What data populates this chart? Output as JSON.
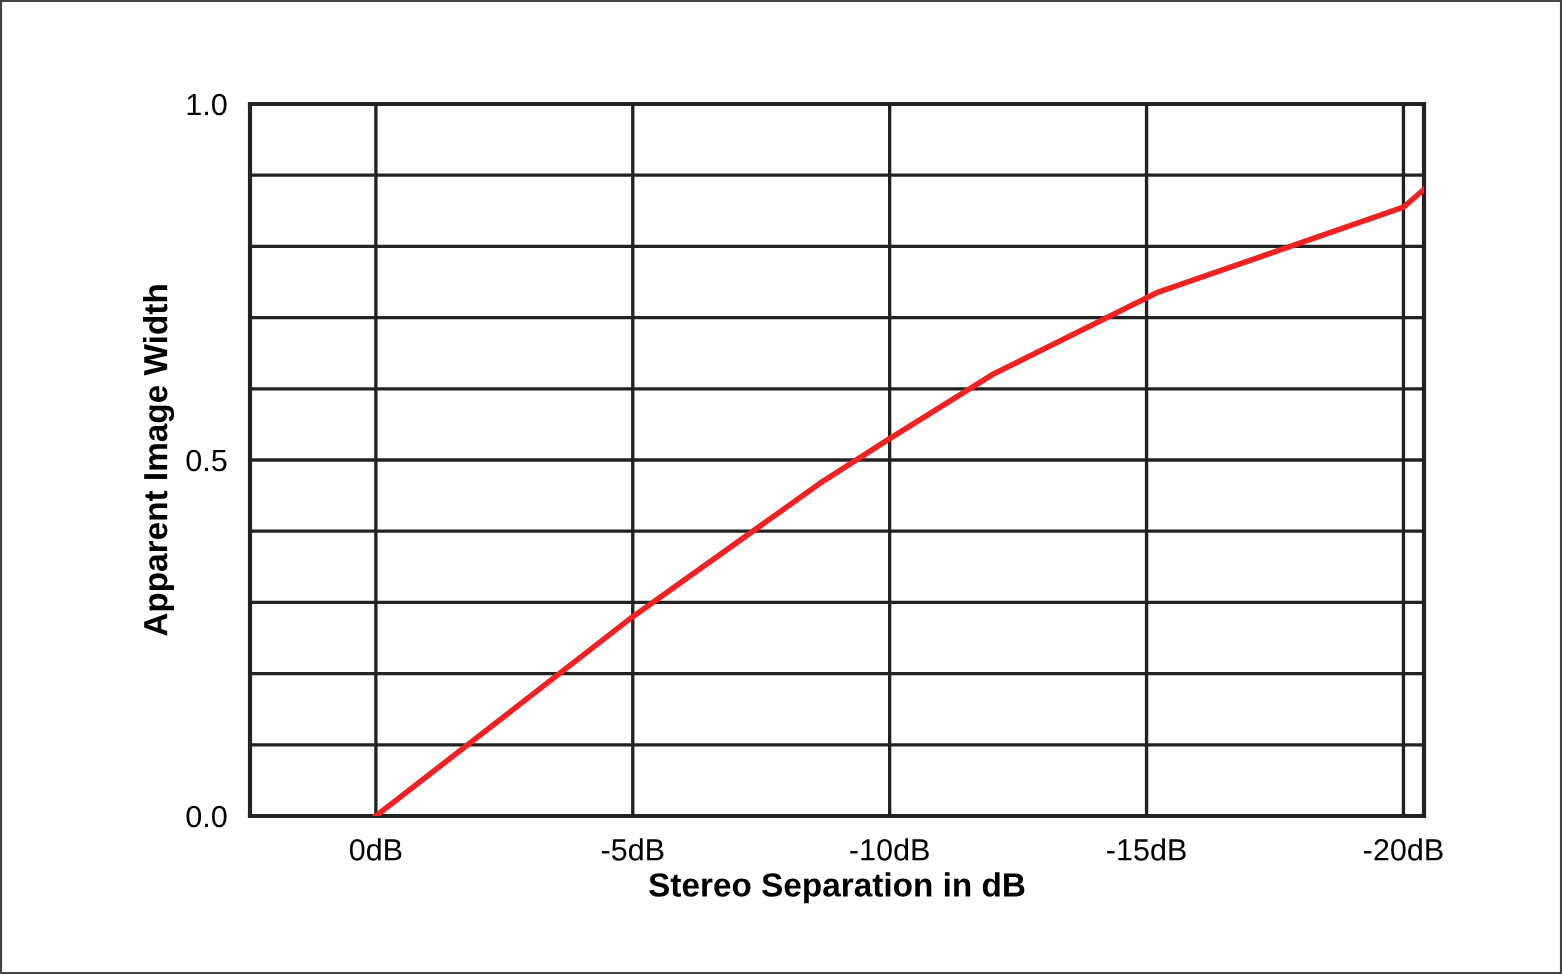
{
  "chart_data": {
    "type": "line",
    "xlabel": "Stereo Separation in dB",
    "ylabel": "Apparent Image Width",
    "x": [
      0,
      -5,
      -8.7,
      -10,
      -12,
      -15.2,
      -20,
      -20.4
    ],
    "series": [
      {
        "color": "#ee2222",
        "values": [
          0.0,
          0.28,
          0.47,
          0.53,
          0.62,
          0.735,
          0.855,
          0.88
        ]
      }
    ],
    "xlim": [
      2.45,
      -20.4
    ],
    "xticks": [
      {
        "value": 0,
        "label": "0dB"
      },
      {
        "value": -5,
        "label": "-5dB"
      },
      {
        "value": -10,
        "label": "-10dB"
      },
      {
        "value": -15,
        "label": "-15dB"
      },
      {
        "value": -20,
        "label": "-20dB"
      }
    ],
    "ylim": [
      0,
      1
    ],
    "yticks": [
      {
        "value": 0,
        "label": "0.0"
      },
      {
        "value": 0.1,
        "label": null
      },
      {
        "value": 0.2,
        "label": null
      },
      {
        "value": 0.3,
        "label": null
      },
      {
        "value": 0.4,
        "label": null
      },
      {
        "value": 0.5,
        "label": "0.5"
      },
      {
        "value": 0.6,
        "label": null
      },
      {
        "value": 0.7,
        "label": null
      },
      {
        "value": 0.8,
        "label": null
      },
      {
        "value": 0.9,
        "label": null
      },
      {
        "value": 1.0,
        "label": "1.0"
      }
    ],
    "grid": true,
    "marker": "none",
    "line_style": "solid",
    "legend": false
  }
}
